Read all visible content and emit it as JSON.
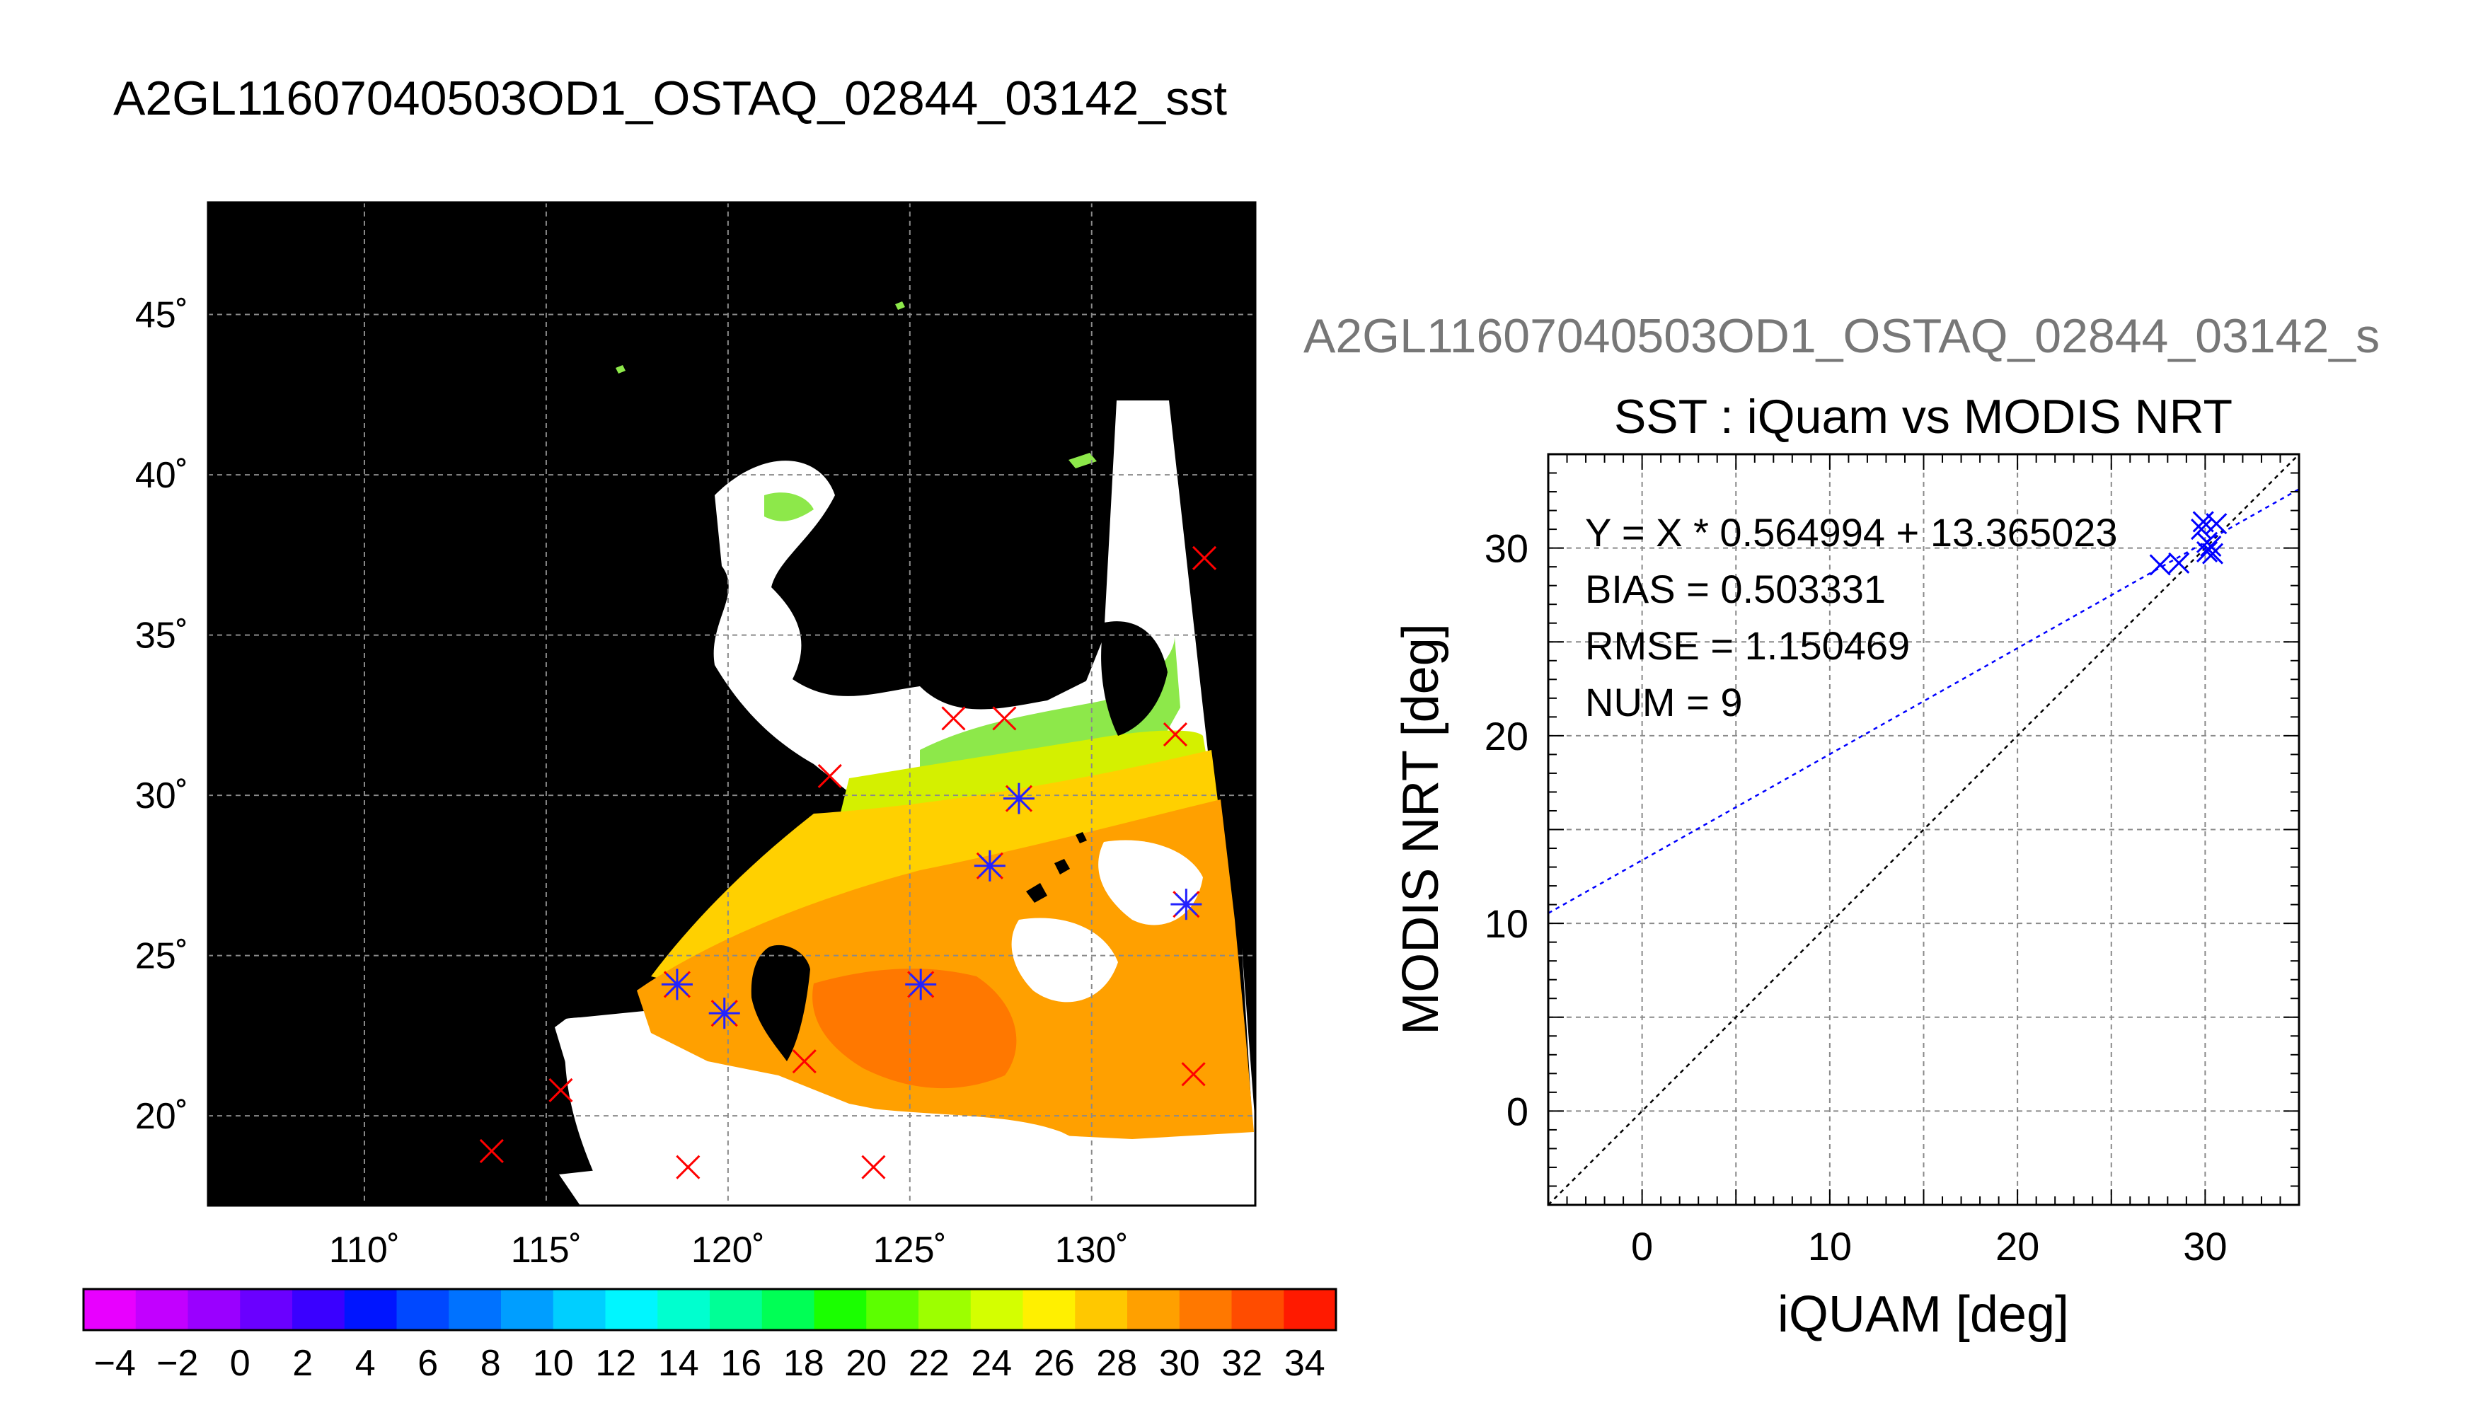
{
  "figure": {
    "main_title": "A2GL11607040503OD1_OSTAQ_02844_03142_sst"
  },
  "chart_data": [
    {
      "type": "heatmap",
      "lon_range": [
        105.7,
        134.5
      ],
      "lat_range": [
        17.2,
        48.5
      ],
      "lon_ticks": [
        110,
        115,
        120,
        125,
        130
      ],
      "lat_ticks": [
        20,
        25,
        30,
        35,
        40,
        45
      ],
      "lon_tick_labels": [
        "110˚",
        "115˚",
        "120˚",
        "125˚",
        "130˚"
      ],
      "lat_tick_labels": [
        "20˚",
        "25˚",
        "30˚",
        "35˚",
        "40˚",
        "45˚"
      ],
      "grid": true,
      "colorbar": {
        "min": -5,
        "max": 35,
        "tick_values": [
          -4,
          -2,
          0,
          2,
          4,
          6,
          8,
          10,
          12,
          14,
          16,
          18,
          20,
          22,
          24,
          26,
          28,
          30,
          32,
          34
        ],
        "tick_labels": [
          "−4",
          "−2",
          "0",
          "2",
          "4",
          "6",
          "8",
          "10",
          "12",
          "14",
          "16",
          "18",
          "20",
          "22",
          "24",
          "26",
          "28",
          "30",
          "32",
          "34"
        ],
        "colors": [
          "#e800ff",
          "#c200ff",
          "#9a00ff",
          "#6a00ff",
          "#3a00ff",
          "#0015ff",
          "#0048ff",
          "#0072ff",
          "#009eff",
          "#00cfff",
          "#00f6ff",
          "#00ffcf",
          "#00ff96",
          "#00ff55",
          "#1aff00",
          "#5cff00",
          "#9dff00",
          "#d4ff00",
          "#fff000",
          "#ffc800",
          "#ffa000",
          "#ff7800",
          "#ff4c00",
          "#ff1a00"
        ]
      },
      "matchups_red": [
        {
          "lon": 133.1,
          "lat": 37.4
        },
        {
          "lon": 132.3,
          "lat": 31.9
        },
        {
          "lon": 126.2,
          "lat": 32.4
        },
        {
          "lon": 127.6,
          "lat": 32.4
        },
        {
          "lon": 122.8,
          "lat": 30.6
        },
        {
          "lon": 132.8,
          "lat": 21.3
        },
        {
          "lon": 115.4,
          "lat": 20.8
        },
        {
          "lon": 113.5,
          "lat": 18.9
        },
        {
          "lon": 118.9,
          "lat": 18.4
        },
        {
          "lon": 124.0,
          "lat": 18.4
        },
        {
          "lon": 122.1,
          "lat": 21.7
        }
      ],
      "matchups_blue": [
        {
          "lon": 128.0,
          "lat": 29.9
        },
        {
          "lon": 127.2,
          "lat": 27.8
        },
        {
          "lon": 132.6,
          "lat": 26.6
        },
        {
          "lon": 125.3,
          "lat": 24.1
        },
        {
          "lon": 118.6,
          "lat": 24.1
        },
        {
          "lon": 119.9,
          "lat": 23.2
        }
      ]
    },
    {
      "type": "scatter",
      "header": "A2GL11607040503OD1_OSTAQ_02844_03142_s",
      "title": "SST : iQuam vs MODIS NRT",
      "xlabel": "iQUAM [deg]",
      "ylabel": "MODIS NRT [deg]",
      "xlim": [
        -5,
        35
      ],
      "ylim": [
        -5,
        35
      ],
      "x_ticks": [
        0,
        10,
        20,
        30
      ],
      "y_ticks": [
        0,
        10,
        20,
        30
      ],
      "x_tick_labels": [
        "0",
        "10",
        "20",
        "30"
      ],
      "y_tick_labels": [
        "0",
        "10",
        "20",
        "30"
      ],
      "grid": true,
      "stats": [
        "Y = X * 0.564994 + 13.365023",
        "BIAS = 0.503331",
        "RMSE = 1.150469",
        "NUM = 9"
      ],
      "fit": {
        "slope": 0.564994,
        "intercept": 13.365023
      },
      "points": [
        {
          "x": 27.6,
          "y": 29.1
        },
        {
          "x": 28.6,
          "y": 29.2
        },
        {
          "x": 29.9,
          "y": 31.4
        },
        {
          "x": 30.6,
          "y": 31.3
        },
        {
          "x": 30.1,
          "y": 30.3
        },
        {
          "x": 30.3,
          "y": 30.1
        },
        {
          "x": 30.1,
          "y": 29.8
        },
        {
          "x": 30.4,
          "y": 29.7
        },
        {
          "x": 29.8,
          "y": 31.0
        }
      ]
    }
  ]
}
